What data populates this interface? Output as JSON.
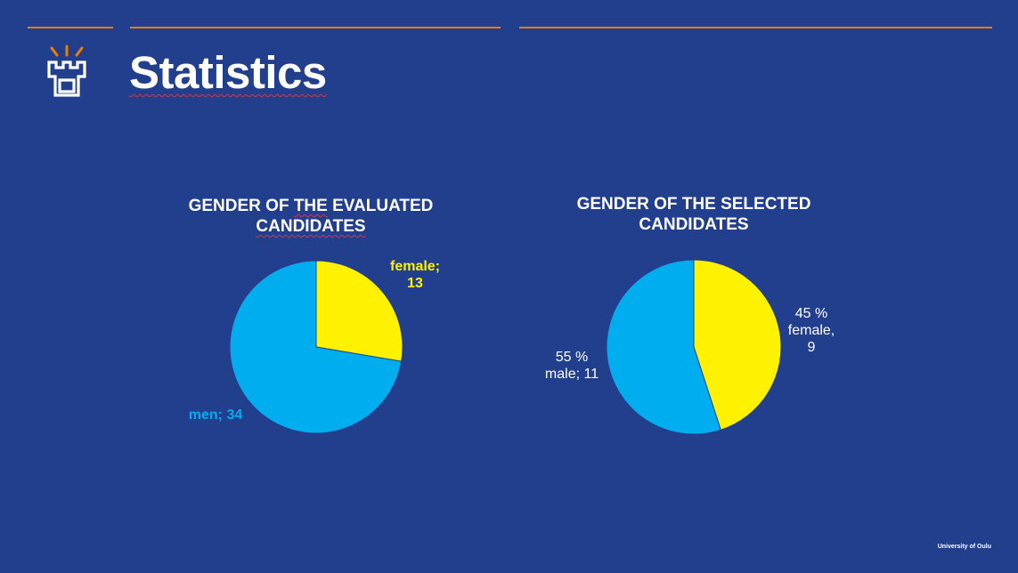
{
  "slide": {
    "title": "Statistics",
    "footer": "University of Oulu",
    "logo": "university-of-oulu-castle-logo"
  },
  "colors": {
    "background": "#223f8e",
    "accent": "#f07d00",
    "female": "#fff200",
    "male": "#00aeef",
    "text": "#ffffff"
  },
  "chart_data": [
    {
      "type": "pie",
      "title_parts": [
        "GENDER OF ",
        "THE",
        " EVALUATED",
        "CANDIDATES"
      ],
      "title": "GENDER OF THE EVALUATED CANDIDATES",
      "slices": [
        {
          "label": "female",
          "value": 13,
          "display": [
            "female;",
            "13"
          ],
          "color": "#fff200",
          "label_color": "#fff200"
        },
        {
          "label": "men",
          "value": 34,
          "display": [
            "men; 34"
          ],
          "color": "#00aeef",
          "label_color": "#00aeef"
        }
      ],
      "start_angle": 0,
      "direction": "clockwise"
    },
    {
      "type": "pie",
      "title_parts": [
        "GENDER OF THE SELECTED",
        "CANDIDATES"
      ],
      "title": "GENDER OF THE SELECTED CANDIDATES",
      "slices": [
        {
          "label": "female",
          "value": 9,
          "display": [
            "45 %",
            "female,",
            "9"
          ],
          "color": "#fff200",
          "label_color": "#ffffff"
        },
        {
          "label": "male",
          "value": 11,
          "display": [
            "55 %",
            "male; 11"
          ],
          "color": "#00aeef",
          "label_color": "#ffffff"
        }
      ],
      "start_angle": 0,
      "direction": "clockwise"
    }
  ]
}
